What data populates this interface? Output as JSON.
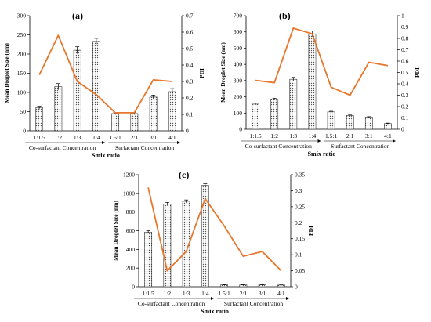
{
  "colors": {
    "bar_fill": "#ffffff",
    "bar_pattern": "#555555",
    "line": "#E8762B",
    "axis": "#000000"
  },
  "chart_data": [
    {
      "type": "bar",
      "panel_label": "(a)",
      "categories": [
        "1:1.5",
        "1:2",
        "1:3",
        "1:4",
        "1.5:1",
        "2:1",
        "3:1",
        "4:1"
      ],
      "ylabel": "Mean Droplet Size (nm)",
      "y2label": "PDI",
      "xlabel": "Smix ratio",
      "group_labels": [
        "Co-surfactant   Concentration",
        "Surfactant    Concentration"
      ],
      "ylim": [
        0,
        300
      ],
      "yticks": [
        0,
        50,
        100,
        150,
        200,
        250,
        300
      ],
      "y2lim": [
        0,
        0.7
      ],
      "y2ticks": [
        0,
        0.1,
        0.2,
        0.3,
        0.4,
        0.5,
        0.6,
        0.7
      ],
      "y2tick_labels": [
        "0",
        "0.1",
        "0.2",
        "0.3",
        "0.4",
        "0.5",
        "0.6",
        "0.7"
      ],
      "series": [
        {
          "type": "bar",
          "values": [
            60,
            115,
            210,
            233,
            45,
            45,
            88,
            102
          ],
          "errors": [
            4,
            8,
            9,
            8,
            3,
            3,
            5,
            8
          ]
        },
        {
          "type": "line",
          "axis": "y2",
          "values": [
            0.34,
            0.58,
            0.3,
            0.22,
            0.11,
            0.11,
            0.31,
            0.3
          ]
        }
      ]
    },
    {
      "type": "bar",
      "panel_label": "(b)",
      "categories": [
        "1:1.5",
        "1:2",
        "1:3",
        "1:4",
        "1.5:1",
        "2:1",
        "3:1",
        "4:1"
      ],
      "ylabel": "Mean Droplet Size (nm)",
      "y2label": "PDI",
      "xlabel": "Smix ratio",
      "group_labels": [
        "Co-surfactant   Concentration",
        "Surfactant    Concentration"
      ],
      "ylim": [
        0,
        700
      ],
      "yticks": [
        0,
        100,
        200,
        300,
        400,
        500,
        600,
        700
      ],
      "y2lim": [
        0,
        1
      ],
      "y2ticks": [
        0,
        0.1,
        0.2,
        0.3,
        0.4,
        0.5,
        0.6,
        0.7,
        0.8,
        0.9,
        1
      ],
      "y2tick_labels": [
        "0",
        "0.1",
        "0.2",
        "0.3",
        "0.4",
        "0.5",
        "0.6",
        "0.7",
        "0.8",
        "0.9",
        "1"
      ],
      "series": [
        {
          "type": "bar",
          "values": [
            155,
            185,
            308,
            588,
            107,
            85,
            75,
            35
          ],
          "errors": [
            6,
            6,
            12,
            18,
            4,
            3,
            3,
            3
          ]
        },
        {
          "type": "line",
          "axis": "y2",
          "values": [
            0.43,
            0.41,
            0.89,
            0.84,
            0.37,
            0.3,
            0.59,
            0.56
          ]
        }
      ]
    },
    {
      "type": "bar",
      "panel_label": "(c)",
      "categories": [
        "1:1.5",
        "1:2",
        "1:3",
        "1:4",
        "1.5:1",
        "2:1",
        "3:1",
        "4:1"
      ],
      "ylabel": "Mean Droplet Size (nm)",
      "y2label": "PDI",
      "xlabel": "Smix ratio",
      "group_labels": [
        "Co-surfactant   Concentration",
        "Surfactant    Concentration"
      ],
      "ylim": [
        0,
        1200
      ],
      "yticks": [
        0,
        200,
        400,
        600,
        800,
        1000,
        1200
      ],
      "y2lim": [
        0,
        0.35
      ],
      "y2ticks": [
        0,
        0.05,
        0.1,
        0.15,
        0.2,
        0.25,
        0.3,
        0.35
      ],
      "y2tick_labels": [
        "0",
        "0.05",
        "0.1",
        "0.15",
        "0.2",
        "0.25",
        "0.3",
        "0.35"
      ],
      "series": [
        {
          "type": "bar",
          "values": [
            585,
            885,
            915,
            1085,
            20,
            20,
            20,
            18
          ],
          "errors": [
            15,
            18,
            15,
            20,
            2,
            2,
            2,
            2
          ]
        },
        {
          "type": "line",
          "axis": "y2",
          "values": [
            0.31,
            0.05,
            0.11,
            0.275,
            0.19,
            0.095,
            0.11,
            0.05
          ]
        }
      ]
    }
  ]
}
